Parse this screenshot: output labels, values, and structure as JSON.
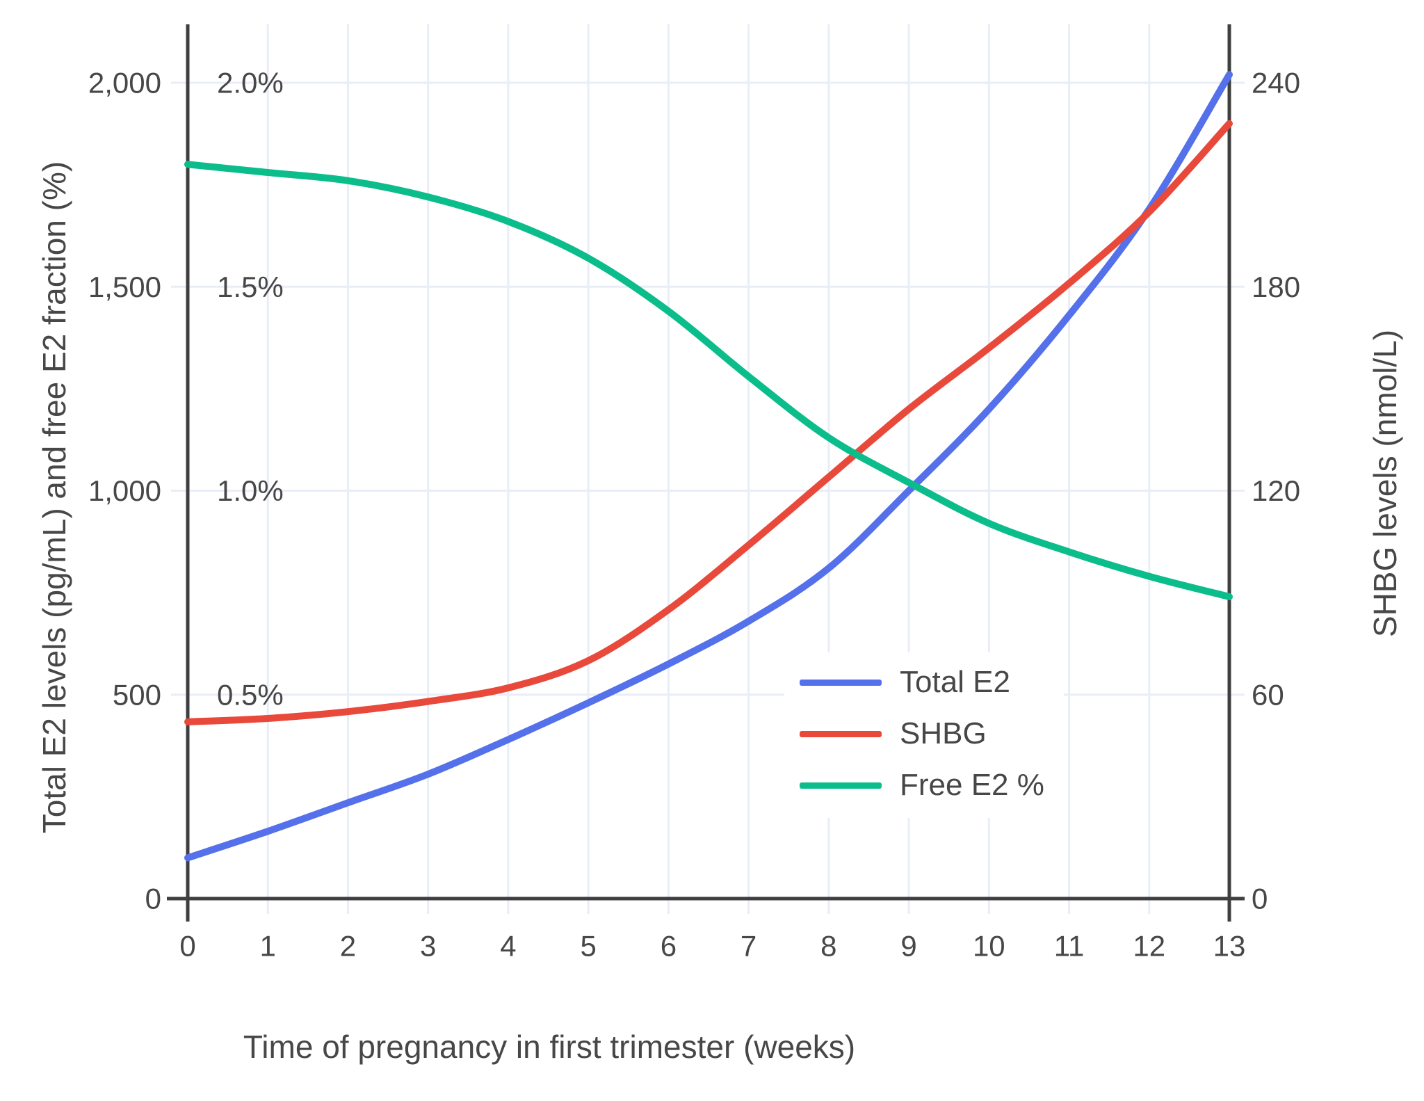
{
  "figure": {
    "background": "#ffffff",
    "text_color": "#474747",
    "grid_color": "#e9edf7",
    "axis_color": "#3f3f3f"
  },
  "chart_data": {
    "type": "line",
    "title": "",
    "xlabel": "Time of pregnancy in first trimester (weeks)",
    "ylabel_left": "Total E2 levels (pg/mL) and free E2 fraction (%)",
    "ylabel_right": "SHBG levels (nmol/L)",
    "x": [
      0,
      1,
      2,
      3,
      4,
      5,
      6,
      7,
      8,
      9,
      10,
      11,
      12,
      13
    ],
    "x_tick_labels": [
      "0",
      "1",
      "2",
      "3",
      "4",
      "5",
      "6",
      "7",
      "8",
      "9",
      "10",
      "11",
      "12",
      "13"
    ],
    "axes": {
      "left": {
        "range": [
          0,
          2140
        ],
        "ticks": [
          0,
          500,
          1000,
          1500,
          2000
        ],
        "tick_labels": [
          "0",
          "500",
          "1,000",
          "1,500",
          "2,000"
        ]
      },
      "left_percent": {
        "note": "free E2 fraction axis drawn inside plot; 0.5% aligns with 500 pg/mL",
        "ticks": [
          0.5,
          1.0,
          1.5,
          2.0
        ],
        "tick_labels": [
          "0.5%",
          "1.0%",
          "1.5%",
          "2.0%"
        ]
      },
      "right": {
        "range": [
          0,
          257
        ],
        "ticks": [
          0,
          60,
          120,
          180,
          240
        ],
        "tick_labels": [
          "0",
          "60",
          "120",
          "180",
          "240"
        ]
      }
    },
    "grid": true,
    "legend_position": "inside lower-right",
    "series": [
      {
        "name": "Total E2",
        "axis": "left",
        "unit": "pg/mL",
        "color": "#5470ea",
        "values": [
          100,
          165,
          235,
          305,
          390,
          480,
          575,
          680,
          810,
          1000,
          1200,
          1430,
          1690,
          2020
        ]
      },
      {
        "name": "SHBG",
        "axis": "right",
        "unit": "nmol/L",
        "color": "#e8493a",
        "values": [
          52,
          53,
          55,
          58,
          62,
          70,
          85,
          104,
          124,
          144,
          162,
          181,
          202,
          228
        ]
      },
      {
        "name": "Free E2 %",
        "axis": "left_percent",
        "unit": "%",
        "color": "#0bbd8b",
        "values": [
          1.8,
          1.78,
          1.76,
          1.72,
          1.66,
          1.57,
          1.44,
          1.28,
          1.13,
          1.02,
          0.92,
          0.85,
          0.79,
          0.74
        ]
      }
    ]
  }
}
